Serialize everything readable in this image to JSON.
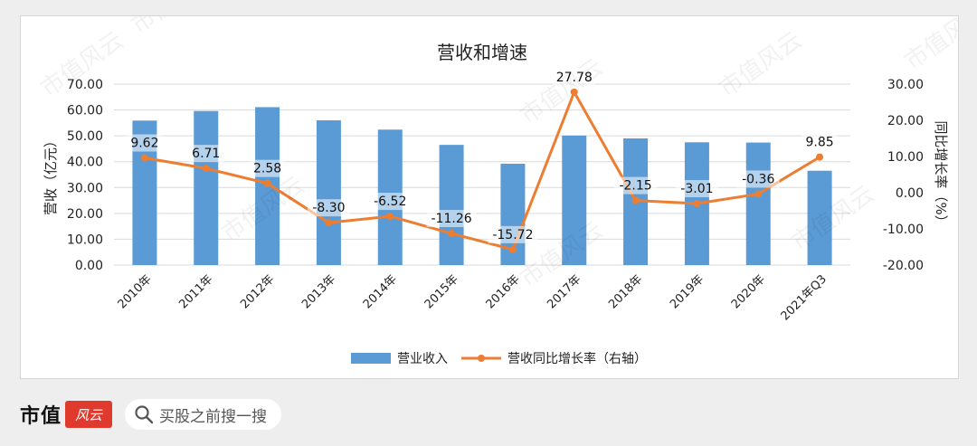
{
  "chart_data": {
    "type": "bar",
    "title": "营收和增速",
    "categories": [
      "2010年",
      "2011年",
      "2012年",
      "2013年",
      "2014年",
      "2015年",
      "2016年",
      "2017年",
      "2018年",
      "2019年",
      "2020年",
      "2021年Q3"
    ],
    "series": [
      {
        "name": "营业收入",
        "type": "bar",
        "axis": "left",
        "color": "#5b9bd5",
        "values": [
          55.9,
          59.6,
          61.1,
          56.0,
          52.4,
          46.5,
          39.2,
          50.1,
          49.0,
          47.5,
          47.4,
          36.5
        ]
      },
      {
        "name": "营收同比增长率（右轴）",
        "type": "line",
        "axis": "right",
        "color": "#ed7d31",
        "values": [
          9.62,
          6.71,
          2.58,
          -8.3,
          -6.52,
          -11.26,
          -15.72,
          27.78,
          -2.15,
          -3.01,
          -0.36,
          9.85
        ],
        "labels": [
          "9.62",
          "6.71",
          "2.58",
          "-8.30",
          "-6.52",
          "-11.26",
          "-15.72",
          "27.78",
          "-2.15",
          "-3.01",
          "-0.36",
          "9.85"
        ]
      }
    ],
    "ylabel": "营收（亿元）",
    "y2label": "同比增长率（%）",
    "ylim": [
      0,
      70
    ],
    "y2lim": [
      -20,
      30
    ],
    "yticks": [
      "0.00",
      "10.00",
      "20.00",
      "30.00",
      "40.00",
      "50.00",
      "60.00",
      "70.00"
    ],
    "y2ticks": [
      "-20.00",
      "-10.00",
      "0.00",
      "10.00",
      "20.00",
      "30.00"
    ],
    "grid": "horizontal",
    "legend_position": "bottom"
  },
  "watermark": "市值风云",
  "footer": {
    "brand": "市值",
    "search_placeholder": "买股之前搜一搜"
  }
}
